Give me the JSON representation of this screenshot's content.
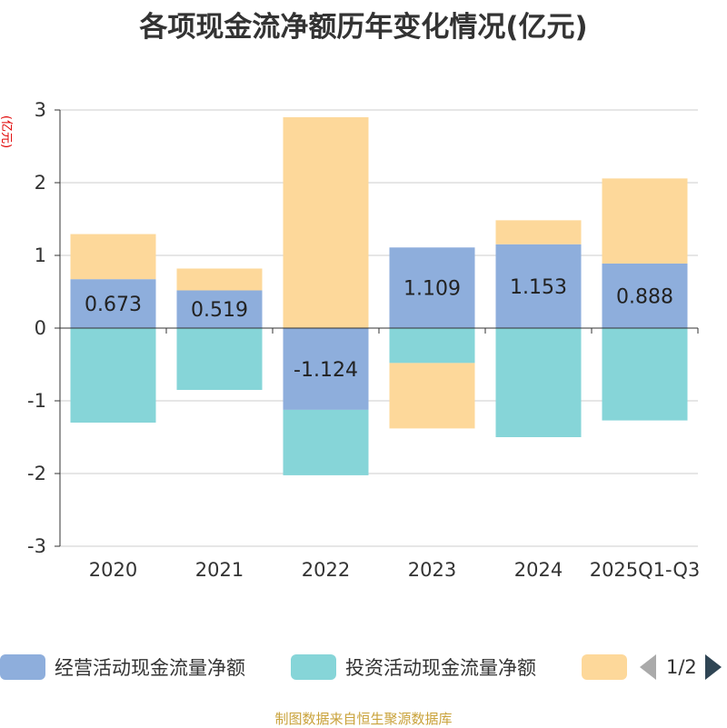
{
  "chart_data": {
    "type": "bar",
    "stacked": true,
    "title": "各项现金流净额历年变化情况(亿元)",
    "ylabel": "(亿元)",
    "ylim": [
      -3,
      3
    ],
    "yticks": [
      3,
      2,
      1,
      0,
      -1,
      -2,
      -3
    ],
    "categories": [
      "2020",
      "2021",
      "2022",
      "2023",
      "2024",
      "2025Q1-Q3"
    ],
    "series": [
      {
        "name": "经营活动现金流量净额",
        "color": "#8eaedc",
        "values": [
          0.673,
          0.519,
          -1.124,
          1.109,
          1.153,
          0.888
        ],
        "labels": [
          "0.673",
          "0.519",
          "-1.124",
          "1.109",
          "1.153",
          "0.888"
        ]
      },
      {
        "name": "投资活动现金流量净额",
        "color": "#86d5d8",
        "values": [
          -1.3,
          -0.85,
          -0.9,
          -0.48,
          -1.5,
          -1.27
        ]
      },
      {
        "name": "",
        "color": "#fdd89a",
        "values": [
          0.62,
          0.3,
          2.9,
          -0.9,
          0.33,
          1.17
        ]
      }
    ],
    "legend": {
      "position": "bottom",
      "page": "1/2"
    },
    "grid": true,
    "source": "制图数据来自恒生聚源数据库"
  }
}
